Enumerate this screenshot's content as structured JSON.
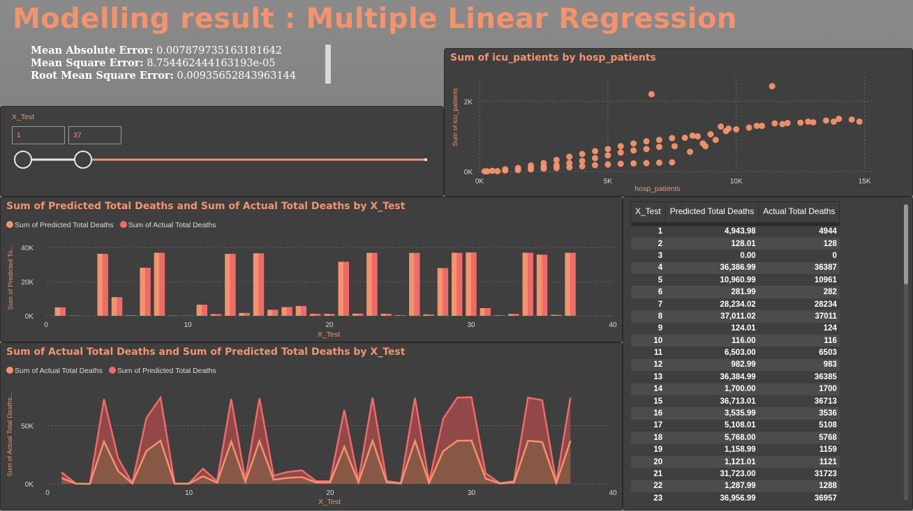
{
  "title": "Modelling result : Multiple Linear Regression",
  "metrics": [
    {
      "label": "Mean Absolute Error:",
      "value": "0.007879735163181642"
    },
    {
      "label": "Mean Square Error:",
      "value": "8.754462444163193e-05"
    },
    {
      "label": "Root Mean Square Error:",
      "value": "0.00935652843963144"
    }
  ],
  "slicer": {
    "label": "X_Test",
    "min_value": "1",
    "max_value": "37",
    "range_min": 0,
    "range_max": 37,
    "selected_min": 1,
    "selected_max": 37
  },
  "colors": {
    "accent": "#f4936d",
    "series_a": "#f4936d",
    "series_b": "#f06a6a",
    "panel": "#3f3f3f"
  },
  "scatter": {
    "title": "Sum of icu_patients by hosp_patients",
    "xlabel": "hosp_patients",
    "ylabel": "Sum of icu_patients"
  },
  "bar": {
    "title": "Sum of Predicted Total Deaths and Sum of Actual Total Deaths by X_Test",
    "ylabel": "Sum of Predicted To...",
    "xlabel": "X_Test",
    "legend": [
      "Sum of Predicted Total Deaths",
      "Sum of Actual Total Deaths"
    ]
  },
  "area": {
    "title": "Sum of Actual Total Deaths and Sum of Predicted Total Deaths by X_Test",
    "ylabel": "Sum of Actual Total Deaths...",
    "xlabel": "X_Test",
    "legend": [
      "Sum of Actual Total Deaths",
      "Sum of Predicted Total Deaths"
    ]
  },
  "table": {
    "headers": [
      "X_Test",
      "Predicted Total Deaths",
      "Actual Total Deaths"
    ],
    "rows": [
      [
        "1",
        "4,943.98",
        "4944"
      ],
      [
        "2",
        "128.01",
        "128"
      ],
      [
        "3",
        "0.00",
        "0"
      ],
      [
        "4",
        "36,386.99",
        "36387"
      ],
      [
        "5",
        "10,960.99",
        "10961"
      ],
      [
        "6",
        "281.99",
        "282"
      ],
      [
        "7",
        "28,234.02",
        "28234"
      ],
      [
        "8",
        "37,011.02",
        "37011"
      ],
      [
        "9",
        "124.01",
        "124"
      ],
      [
        "10",
        "116.00",
        "116"
      ],
      [
        "11",
        "6,503.00",
        "6503"
      ],
      [
        "12",
        "982.99",
        "983"
      ],
      [
        "13",
        "36,384.99",
        "36385"
      ],
      [
        "14",
        "1,700.00",
        "1700"
      ],
      [
        "15",
        "36,713.01",
        "36713"
      ],
      [
        "16",
        "3,535.99",
        "3536"
      ],
      [
        "17",
        "5,108.01",
        "5108"
      ],
      [
        "18",
        "5,768.00",
        "5768"
      ],
      [
        "19",
        "1,158.99",
        "1159"
      ],
      [
        "20",
        "1,121.01",
        "1121"
      ],
      [
        "21",
        "31,723.00",
        "31723"
      ],
      [
        "22",
        "1,287.99",
        "1288"
      ],
      [
        "23",
        "36,956.99",
        "36957"
      ]
    ]
  },
  "chart_data": [
    {
      "type": "scatter",
      "title": "Sum of icu_patients by hosp_patients",
      "xlabel": "hosp_patients",
      "ylabel": "Sum of icu_patients",
      "xlim": [
        0,
        15500
      ],
      "ylim": [
        0,
        2700
      ],
      "xticks": [
        {
          "v": 0,
          "t": "0K"
        },
        {
          "v": 5000,
          "t": "5K"
        },
        {
          "v": 10000,
          "t": "10K"
        },
        {
          "v": 15000,
          "t": "15K"
        }
      ],
      "yticks": [
        {
          "v": 0,
          "t": "0K"
        },
        {
          "v": 2000,
          "t": "2K"
        }
      ],
      "grid": true,
      "points": [
        [
          6700,
          2200
        ],
        [
          11400,
          2430
        ],
        [
          14800,
          1420
        ],
        [
          14500,
          1480
        ],
        [
          14000,
          1500
        ],
        [
          13500,
          1450
        ],
        [
          13000,
          1400
        ],
        [
          12500,
          1390
        ],
        [
          12000,
          1380
        ],
        [
          11500,
          1370
        ],
        [
          11000,
          1300
        ],
        [
          10500,
          1250
        ],
        [
          10000,
          1200
        ],
        [
          9600,
          1150
        ],
        [
          9000,
          1060
        ],
        [
          8500,
          1000
        ],
        [
          8000,
          960
        ],
        [
          7500,
          950
        ],
        [
          7000,
          900
        ],
        [
          6500,
          860
        ],
        [
          6000,
          800
        ],
        [
          5500,
          720
        ],
        [
          5000,
          640
        ],
        [
          4500,
          580
        ],
        [
          4000,
          500
        ],
        [
          3500,
          420
        ],
        [
          3000,
          330
        ],
        [
          2500,
          240
        ],
        [
          2000,
          170
        ],
        [
          1500,
          100
        ],
        [
          1000,
          60
        ],
        [
          500,
          20
        ],
        [
          200,
          5
        ],
        [
          8200,
          560
        ],
        [
          8800,
          720
        ],
        [
          9200,
          900
        ],
        [
          7600,
          720
        ],
        [
          7000,
          700
        ],
        [
          6500,
          640
        ],
        [
          6000,
          600
        ],
        [
          5500,
          540
        ],
        [
          5000,
          460
        ],
        [
          4500,
          380
        ],
        [
          4000,
          300
        ],
        [
          3500,
          240
        ],
        [
          3000,
          180
        ],
        [
          2500,
          140
        ],
        [
          2000,
          100
        ],
        [
          7500,
          260
        ],
        [
          7000,
          250
        ],
        [
          6500,
          240
        ],
        [
          6000,
          230
        ],
        [
          5500,
          220
        ],
        [
          5000,
          200
        ],
        [
          4500,
          180
        ],
        [
          4000,
          150
        ],
        [
          3500,
          120
        ],
        [
          3000,
          100
        ],
        [
          2500,
          80
        ],
        [
          2000,
          60
        ],
        [
          1500,
          40
        ],
        [
          1000,
          30
        ],
        [
          700,
          10
        ],
        [
          300,
          5
        ],
        [
          13800,
          1420
        ],
        [
          12800,
          1420
        ],
        [
          11800,
          1350
        ],
        [
          10800,
          1300
        ],
        [
          9700,
          1220
        ],
        [
          8300,
          1020
        ],
        [
          9400,
          1280
        ],
        [
          8700,
          800
        ]
      ]
    },
    {
      "type": "bar",
      "title": "Sum of Predicted Total Deaths and Sum of Actual Total Deaths by X_Test",
      "xlabel": "X_Test",
      "ylabel": "Sum of Predicted To...",
      "xlim": [
        0,
        40
      ],
      "ylim": [
        0,
        45000
      ],
      "xticks": [
        0,
        10,
        20,
        30,
        40
      ],
      "yticks": [
        {
          "v": 0,
          "t": "0K"
        },
        {
          "v": 20000,
          "t": "20K"
        },
        {
          "v": 40000,
          "t": "40K"
        }
      ],
      "categories": [
        1,
        2,
        3,
        4,
        5,
        6,
        7,
        8,
        9,
        10,
        11,
        12,
        13,
        14,
        15,
        16,
        17,
        18,
        19,
        20,
        21,
        22,
        23,
        24,
        25,
        26,
        27,
        28,
        29,
        30,
        31,
        32,
        33,
        34,
        35,
        36,
        37
      ],
      "series": [
        {
          "name": "Sum of Predicted Total Deaths",
          "values": [
            4944,
            128,
            0,
            36387,
            10961,
            282,
            28234,
            37011,
            124,
            116,
            6503,
            983,
            36385,
            1700,
            36713,
            3536,
            5108,
            5768,
            1159,
            1121,
            31723,
            1288,
            36957,
            1200,
            300,
            36900,
            800,
            28000,
            37000,
            37200,
            4500,
            300,
            1100,
            37000,
            35900,
            600,
            37000
          ]
        },
        {
          "name": "Sum of Actual Total Deaths",
          "values": [
            4944,
            128,
            0,
            36387,
            10961,
            282,
            28234,
            37011,
            124,
            116,
            6503,
            983,
            36385,
            1700,
            36713,
            3536,
            5108,
            5768,
            1159,
            1121,
            31723,
            1288,
            36957,
            1200,
            300,
            36900,
            800,
            28000,
            37000,
            37200,
            4500,
            300,
            1100,
            37000,
            35900,
            600,
            37000
          ]
        }
      ]
    },
    {
      "type": "area",
      "title": "Sum of Actual Total Deaths and Sum of Predicted Total Deaths by X_Test",
      "xlabel": "X_Test",
      "ylabel": "Sum of Actual Total Deaths...",
      "xlim": [
        0,
        40
      ],
      "ylim": [
        0,
        85000
      ],
      "xticks": [
        0,
        10,
        20,
        30,
        40
      ],
      "yticks": [
        {
          "v": 0,
          "t": "0K"
        },
        {
          "v": 50000,
          "t": "50K"
        }
      ],
      "categories": [
        1,
        2,
        3,
        4,
        5,
        6,
        7,
        8,
        9,
        10,
        11,
        12,
        13,
        14,
        15,
        16,
        17,
        18,
        19,
        20,
        21,
        22,
        23,
        24,
        25,
        26,
        27,
        28,
        29,
        30,
        31,
        32,
        33,
        34,
        35,
        36,
        37
      ],
      "series": [
        {
          "name": "Sum of Actual Total Deaths",
          "values": [
            4944,
            128,
            0,
            36387,
            10961,
            282,
            28234,
            37011,
            124,
            116,
            6503,
            983,
            36385,
            1700,
            36713,
            3536,
            5108,
            5768,
            1159,
            1121,
            31723,
            1288,
            36957,
            1200,
            300,
            36900,
            800,
            28000,
            37000,
            37200,
            4500,
            300,
            1100,
            37000,
            35900,
            600,
            37000
          ]
        },
        {
          "name": "Sum of Predicted Total Deaths",
          "values": [
            4944,
            128,
            0,
            36387,
            10961,
            282,
            28234,
            37011,
            124,
            116,
            6503,
            983,
            36385,
            1700,
            36713,
            3536,
            5108,
            5768,
            1159,
            1121,
            31723,
            1288,
            36957,
            1200,
            300,
            36900,
            800,
            28000,
            37000,
            37200,
            4500,
            300,
            1100,
            37000,
            35900,
            600,
            37000
          ]
        }
      ]
    }
  ]
}
